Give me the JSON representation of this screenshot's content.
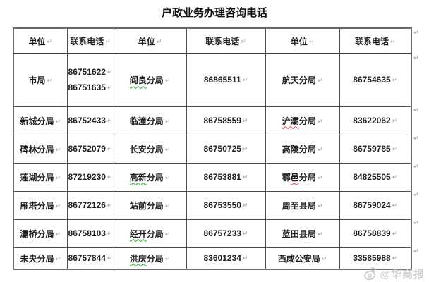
{
  "title": "户政业务办理咨询电话",
  "marks": {
    "cell_return": "↵",
    "row_return": "↵"
  },
  "colors": {
    "border": "#4d4d4d",
    "outer_border": "#6b6b6b",
    "squiggle_green": "#2aa52a",
    "squiggle_red": "#e03a3a",
    "watermark_gray": "#c6c6c6"
  },
  "watermark": {
    "label": "@华商报",
    "icon": "weibo-eye"
  },
  "table": {
    "headers": [
      "单位",
      "联系电话",
      "单位",
      "联系电话",
      "单位",
      "联系电话"
    ],
    "rows": [
      {
        "cells": [
          {
            "kind": "unit",
            "parts": [
              {
                "t": "市局"
              }
            ]
          },
          {
            "kind": "phone",
            "lines": [
              "86751622",
              "86751635"
            ]
          },
          {
            "kind": "unit",
            "parts": [
              {
                "t": "阎良",
                "sq": "green"
              },
              {
                "t": "分局"
              }
            ]
          },
          {
            "kind": "phone",
            "lines": [
              "86865511"
            ]
          },
          {
            "kind": "unit",
            "parts": [
              {
                "t": "航天分局"
              }
            ]
          },
          {
            "kind": "phone",
            "lines": [
              "86754635"
            ]
          }
        ]
      },
      {
        "cells": [
          {
            "kind": "unit",
            "parts": [
              {
                "t": "新城分局"
              }
            ]
          },
          {
            "kind": "phone",
            "lines": [
              "86752433"
            ]
          },
          {
            "kind": "unit",
            "parts": [
              {
                "t": "临潼分局"
              }
            ]
          },
          {
            "kind": "phone",
            "lines": [
              "86758559"
            ]
          },
          {
            "kind": "unit",
            "parts": [
              {
                "t": "浐灞",
                "sq": "red"
              },
              {
                "t": "分局"
              }
            ]
          },
          {
            "kind": "phone",
            "lines": [
              "83622062"
            ]
          }
        ]
      },
      {
        "cells": [
          {
            "kind": "unit",
            "parts": [
              {
                "t": "碑林分局"
              }
            ]
          },
          {
            "kind": "phone",
            "lines": [
              "86752079"
            ]
          },
          {
            "kind": "unit",
            "parts": [
              {
                "t": "长安分局"
              }
            ]
          },
          {
            "kind": "phone",
            "lines": [
              "86750725"
            ]
          },
          {
            "kind": "unit",
            "parts": [
              {
                "t": "高陵分局"
              }
            ]
          },
          {
            "kind": "phone",
            "lines": [
              "86759785"
            ]
          }
        ]
      },
      {
        "cells": [
          {
            "kind": "unit",
            "parts": [
              {
                "t": "莲湖分局"
              }
            ]
          },
          {
            "kind": "phone",
            "lines": [
              "87219230"
            ]
          },
          {
            "kind": "unit",
            "parts": [
              {
                "t": "高新",
                "sq": "green"
              },
              {
                "t": "分局"
              }
            ]
          },
          {
            "kind": "phone",
            "lines": [
              "86753881"
            ]
          },
          {
            "kind": "unit",
            "parts": [
              {
                "t": "鄠"
              },
              {
                "t": "邑",
                "sq": "red"
              },
              {
                "t": "分局"
              }
            ]
          },
          {
            "kind": "phone",
            "lines": [
              "84825505"
            ]
          }
        ]
      },
      {
        "cells": [
          {
            "kind": "unit",
            "parts": [
              {
                "t": "雁塔分局"
              }
            ]
          },
          {
            "kind": "phone",
            "lines": [
              "86772126"
            ]
          },
          {
            "kind": "unit",
            "parts": [
              {
                "t": "站前分局"
              }
            ]
          },
          {
            "kind": "phone",
            "lines": [
              "86753550"
            ]
          },
          {
            "kind": "unit",
            "parts": [
              {
                "t": "周至县局"
              }
            ]
          },
          {
            "kind": "phone",
            "lines": [
              "86759024"
            ]
          }
        ]
      },
      {
        "cells": [
          {
            "kind": "unit",
            "parts": [
              {
                "t": "灞桥分局"
              }
            ]
          },
          {
            "kind": "phone",
            "lines": [
              "86758103"
            ]
          },
          {
            "kind": "unit",
            "parts": [
              {
                "t": "经开",
                "sq": "green"
              },
              {
                "t": "分局"
              }
            ]
          },
          {
            "kind": "phone",
            "lines": [
              "86757233"
            ]
          },
          {
            "kind": "unit",
            "parts": [
              {
                "t": "蓝田县局"
              }
            ]
          },
          {
            "kind": "phone",
            "lines": [
              "86758839"
            ]
          }
        ]
      },
      {
        "cells": [
          {
            "kind": "unit",
            "parts": [
              {
                "t": "未央分局"
              }
            ]
          },
          {
            "kind": "phone",
            "lines": [
              "86757844"
            ]
          },
          {
            "kind": "unit",
            "parts": [
              {
                "t": "洪庆",
                "sq": "green"
              },
              {
                "t": "分局"
              }
            ]
          },
          {
            "kind": "phone",
            "lines": [
              "83601234"
            ]
          },
          {
            "kind": "unit",
            "parts": [
              {
                "t": "西咸公安局"
              }
            ]
          },
          {
            "kind": "phone",
            "lines": [
              "33585988"
            ]
          }
        ]
      }
    ]
  }
}
